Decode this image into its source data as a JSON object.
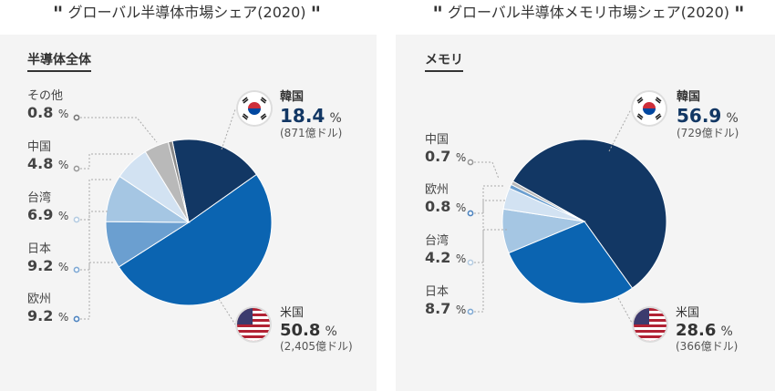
{
  "charts": {
    "left": {
      "title": "グローバル半導体市場シェア(2020)",
      "subtitle": "半導体全体"
    },
    "right": {
      "title": "グローバル半導体メモリ市場シェア(2020)",
      "subtitle": "メモリ"
    }
  },
  "chart_data": [
    {
      "type": "pie",
      "title": "グローバル半導体市場シェア(2020)",
      "subtitle": "半導体全体",
      "unit": "%",
      "slices": [
        {
          "name": "韓国",
          "value": 18.4,
          "amount": "(871億ドル)",
          "color": "#123764"
        },
        {
          "name": "米国",
          "value": 50.8,
          "amount": "(2,405億ドル)",
          "color": "#0b64b1"
        },
        {
          "name": "欧州",
          "value": 9.2,
          "color": "#6b9fd0"
        },
        {
          "name": "日本",
          "value": 9.2,
          "color": "#a5c6e3"
        },
        {
          "name": "台湾",
          "value": 6.9,
          "color": "#d2e2f2"
        },
        {
          "name": "中国",
          "value": 4.8,
          "color": "#b9b9b9"
        },
        {
          "name": "その他",
          "value": 0.8,
          "color": "#8a8a8a"
        }
      ]
    },
    {
      "type": "pie",
      "title": "グローバル半導体メモリ市場シェア(2020)",
      "subtitle": "メモリ",
      "unit": "%",
      "slices": [
        {
          "name": "韓国",
          "value": 56.9,
          "amount": "(729億ドル)",
          "color": "#123764"
        },
        {
          "name": "米国",
          "value": 28.6,
          "amount": "(366億ドル)",
          "color": "#0b64b1"
        },
        {
          "name": "日本",
          "value": 8.7,
          "color": "#a5c6e3"
        },
        {
          "name": "台湾",
          "value": 4.2,
          "color": "#d2e2f2"
        },
        {
          "name": "欧州",
          "value": 0.8,
          "color": "#6b9fd0"
        },
        {
          "name": "中国",
          "value": 0.7,
          "color": "#b9b9b9"
        }
      ]
    }
  ],
  "icons": {
    "korea": "south-korea-flag-icon",
    "usa": "usa-flag-icon"
  }
}
